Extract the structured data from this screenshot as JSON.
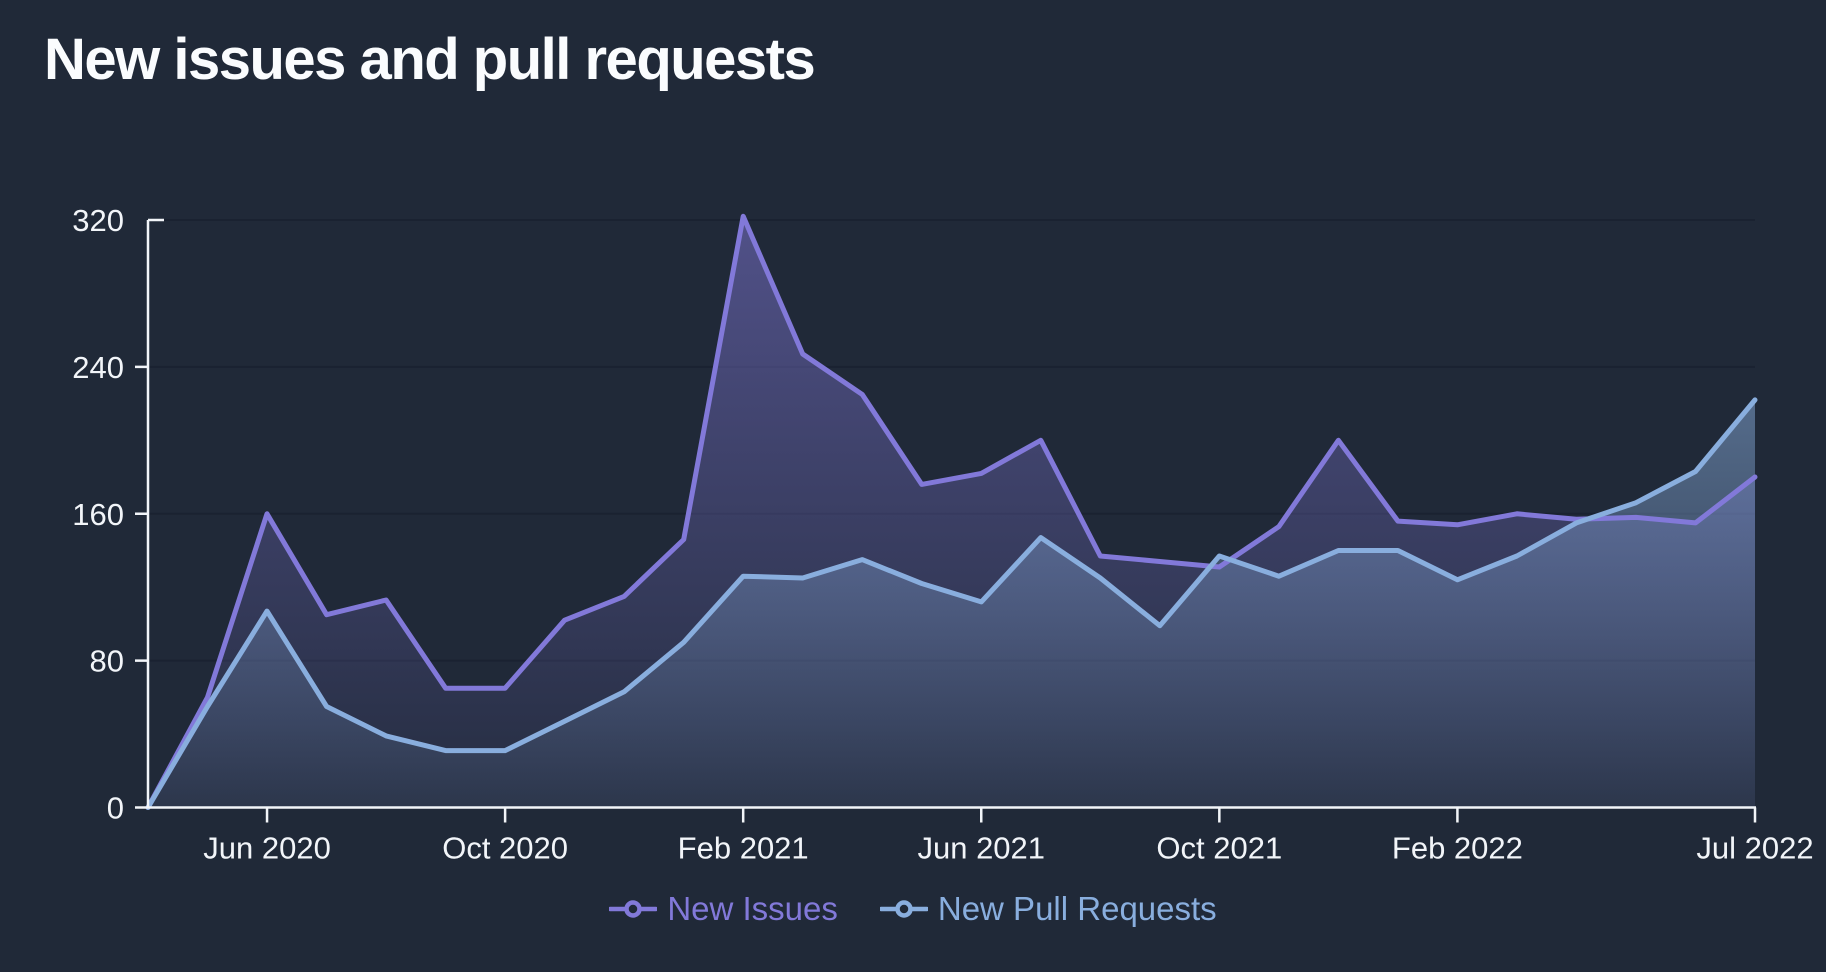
{
  "title": "New issues and pull requests",
  "colors": {
    "background": "#202938",
    "grid": "#1a2231",
    "axis": "#f2f5f9",
    "issues": "#8279d9",
    "pulls": "#89aede"
  },
  "chart_data": {
    "type": "area",
    "title": "New issues and pull requests",
    "xlabel": "",
    "ylabel": "",
    "grid": "horizontal",
    "legend_position": "bottom",
    "ylim": [
      0,
      320
    ],
    "y_ticks": [
      0,
      80,
      160,
      240,
      320
    ],
    "x": [
      "Apr 2020",
      "May 2020",
      "Jun 2020",
      "Jul 2020",
      "Aug 2020",
      "Sep 2020",
      "Oct 2020",
      "Nov 2020",
      "Dec 2020",
      "Jan 2021",
      "Feb 2021",
      "Mar 2021",
      "Apr 2021",
      "May 2021",
      "Jun 2021",
      "Jul 2021",
      "Aug 2021",
      "Sep 2021",
      "Oct 2021",
      "Nov 2021",
      "Dec 2021",
      "Jan 2022",
      "Feb 2022",
      "Mar 2022",
      "Apr 2022",
      "May 2022",
      "Jun 2022",
      "Jul 2022"
    ],
    "x_tick_indices": [
      2,
      6,
      10,
      14,
      18,
      22,
      27
    ],
    "x_tick_labels": [
      "Jun 2020",
      "Oct 2020",
      "Feb 2021",
      "Jun 2021",
      "Oct 2021",
      "Feb 2022",
      "Jul 2022"
    ],
    "series": [
      {
        "name": "New Issues",
        "color": "#8279d9",
        "values": [
          0,
          60,
          160,
          105,
          113,
          65,
          65,
          102,
          115,
          146,
          322,
          247,
          225,
          176,
          182,
          200,
          137,
          134,
          131,
          153,
          200,
          156,
          154,
          160,
          157,
          158,
          155,
          180
        ]
      },
      {
        "name": "New Pull Requests",
        "color": "#89aede",
        "values": [
          0,
          55,
          107,
          55,
          39,
          31,
          31,
          47,
          63,
          90,
          126,
          125,
          135,
          122,
          112,
          147,
          125,
          99,
          137,
          126,
          140,
          140,
          124,
          137,
          155,
          166,
          183,
          222
        ]
      }
    ]
  },
  "legend": {
    "items": [
      {
        "label": "New Issues"
      },
      {
        "label": "New Pull Requests"
      }
    ]
  }
}
